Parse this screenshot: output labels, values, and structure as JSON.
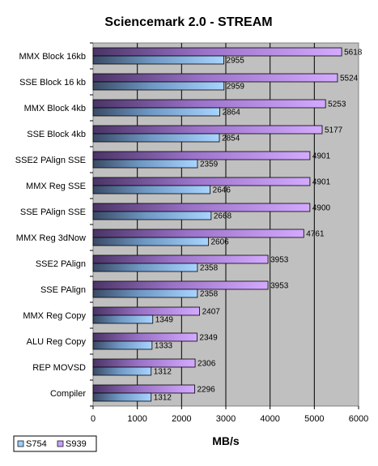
{
  "chart_data": {
    "type": "bar",
    "orientation": "horizontal",
    "title": "Sciencemark 2.0 - STREAM",
    "xlabel": "MB/s",
    "ylabel": "",
    "xlim": [
      0,
      6000
    ],
    "xticks": [
      "0",
      "1000",
      "2000",
      "3000",
      "4000",
      "5000",
      "6000"
    ],
    "grid": true,
    "legend_position": "bottom-left",
    "categories": [
      "MMX Block 16kb",
      "SSE Block 16 kb",
      "MMX Block 4kb",
      "SSE Block 4kb",
      "SSE2 PAlign SSE",
      "MMX Reg SSE",
      "SSE PAlign SSE",
      "MMX Reg 3dNow",
      "SSE2 PAlign",
      "SSE PAlign",
      "MMX Reg Copy",
      "ALU Reg Copy",
      "REP MOVSD",
      "Compiler"
    ],
    "series": [
      {
        "name": "S754",
        "color": "#9ccffc",
        "values": [
          2955,
          2959,
          2864,
          2854,
          2359,
          2646,
          2668,
          2606,
          2358,
          2358,
          1349,
          1333,
          1312,
          1312
        ]
      },
      {
        "name": "S939",
        "color": "#c9a0f6",
        "values": [
          5618,
          5524,
          5253,
          5177,
          4901,
          4901,
          4900,
          4761,
          3953,
          3953,
          2407,
          2349,
          2306,
          2296
        ]
      }
    ]
  }
}
